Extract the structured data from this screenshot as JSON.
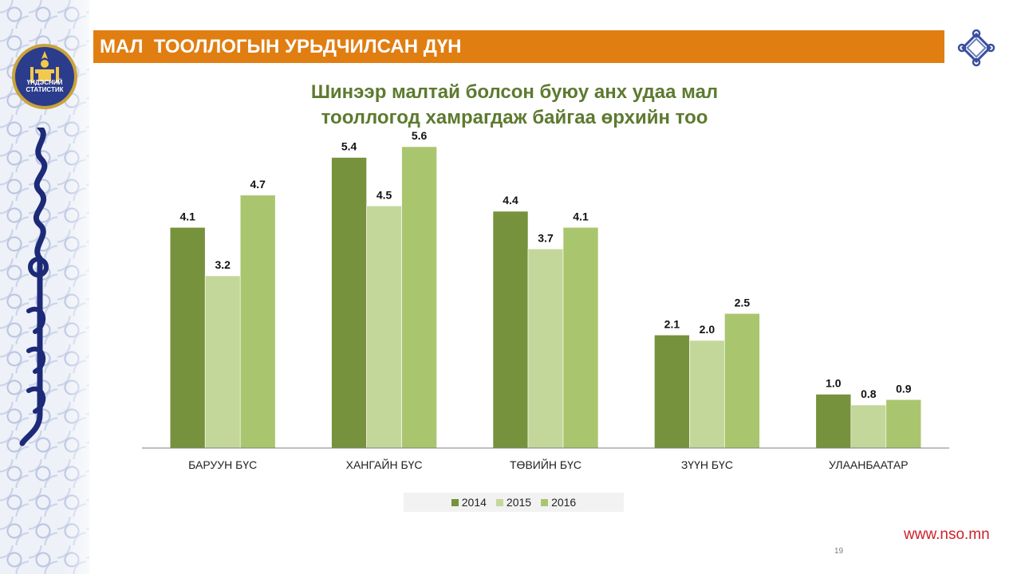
{
  "header": {
    "title": "МАЛ  ТООЛЛОГЫН УРЬДЧИЛСАН ДҮН",
    "logo_text_line1": "ҮНДЭСНИЙ",
    "logo_text_line2": "СТАТИСТИК"
  },
  "footer": {
    "page_number": "19",
    "url": "www.nso.mn"
  },
  "colors": {
    "banner": "#e07e12",
    "title": "#5d7a2f",
    "url": "#d0202a"
  },
  "chart_data": {
    "type": "bar",
    "title_line1": "Шинээр малтай болсон буюу анх удаа мал",
    "title_line2": "тооллогод хамрагдаж байгаа өрхийн тоо",
    "categories": [
      "БАРУУН БҮС",
      "ХАНГАЙН БҮС",
      "ТӨВИЙН БҮС",
      "ЗҮҮН БҮС",
      "УЛААНБААТАР"
    ],
    "series": [
      {
        "name": "2014",
        "color": "#76923c",
        "values": [
          4.1,
          5.4,
          4.4,
          2.1,
          1.0
        ],
        "labels": [
          "4.1",
          "5.4",
          "4.4",
          "2.1",
          "1.0"
        ]
      },
      {
        "name": "2015",
        "color": "#c4d79b",
        "values": [
          3.2,
          4.5,
          3.7,
          2.0,
          0.8
        ],
        "labels": [
          "3.2",
          "4.5",
          "3.7",
          "2.0",
          "0.8"
        ]
      },
      {
        "name": "2016",
        "color": "#a9c66e",
        "values": [
          4.7,
          5.6,
          4.1,
          2.5,
          0.9
        ],
        "labels": [
          "4.7",
          "5.6",
          "4.1",
          "2.5",
          "0.9"
        ]
      }
    ],
    "ylim": [
      0,
      6
    ],
    "grid": false,
    "legend_position": "bottom"
  }
}
